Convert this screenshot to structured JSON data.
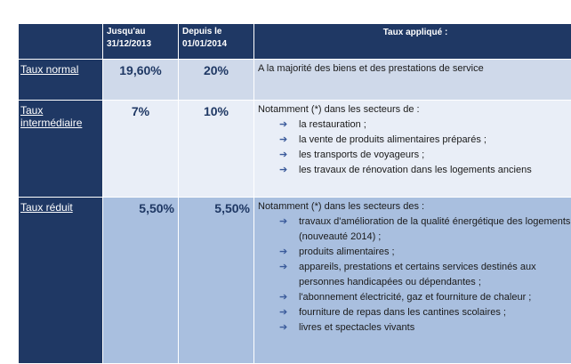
{
  "header": {
    "col_before": "Jusqu'au 31/12/2013",
    "col_before_l1": "Jusqu'au",
    "col_before_l2": "31/12/2013",
    "col_after_l1": "Depuis le",
    "col_after_l2": "01/01/2014",
    "col_applied": "Taux appliqué :"
  },
  "rows": [
    {
      "label": "Taux normal",
      "before": "19,60%",
      "after": "20%",
      "intro": "A la majorité des biens et des prestations de service",
      "items": []
    },
    {
      "label": "Taux intermédiaire",
      "before": "7%",
      "after": "10%",
      "intro": "Notamment (*) dans les secteurs de :",
      "items": [
        "la restauration ;",
        "la vente de produits alimentaires préparés ;",
        "les transports de voyageurs ;",
        "les travaux de rénovation dans les logements anciens"
      ]
    },
    {
      "label": "Taux réduit",
      "before": "5,50%",
      "after": "5,50%",
      "intro": "Notamment (*) dans les secteurs des :",
      "items": [
        "travaux d'amélioration de la qualité énergétique des logements (nouveauté 2014) ;",
        "produits alimentaires ;",
        "appareils, prestations et certains services destinés aux personnes handicapées ou dépendantes ;",
        "l'abonnement électricité, gaz et fourniture de chaleur ;",
        "fourniture de repas dans les cantines scolaires ;",
        "livres et spectacles vivants"
      ]
    }
  ],
  "icons": {
    "bullet": "arrow-right-icon"
  },
  "colors": {
    "header": "#1f3864",
    "row1": "#cfd9ea",
    "row2": "#e9eef7",
    "row3": "#a9bfdf"
  }
}
